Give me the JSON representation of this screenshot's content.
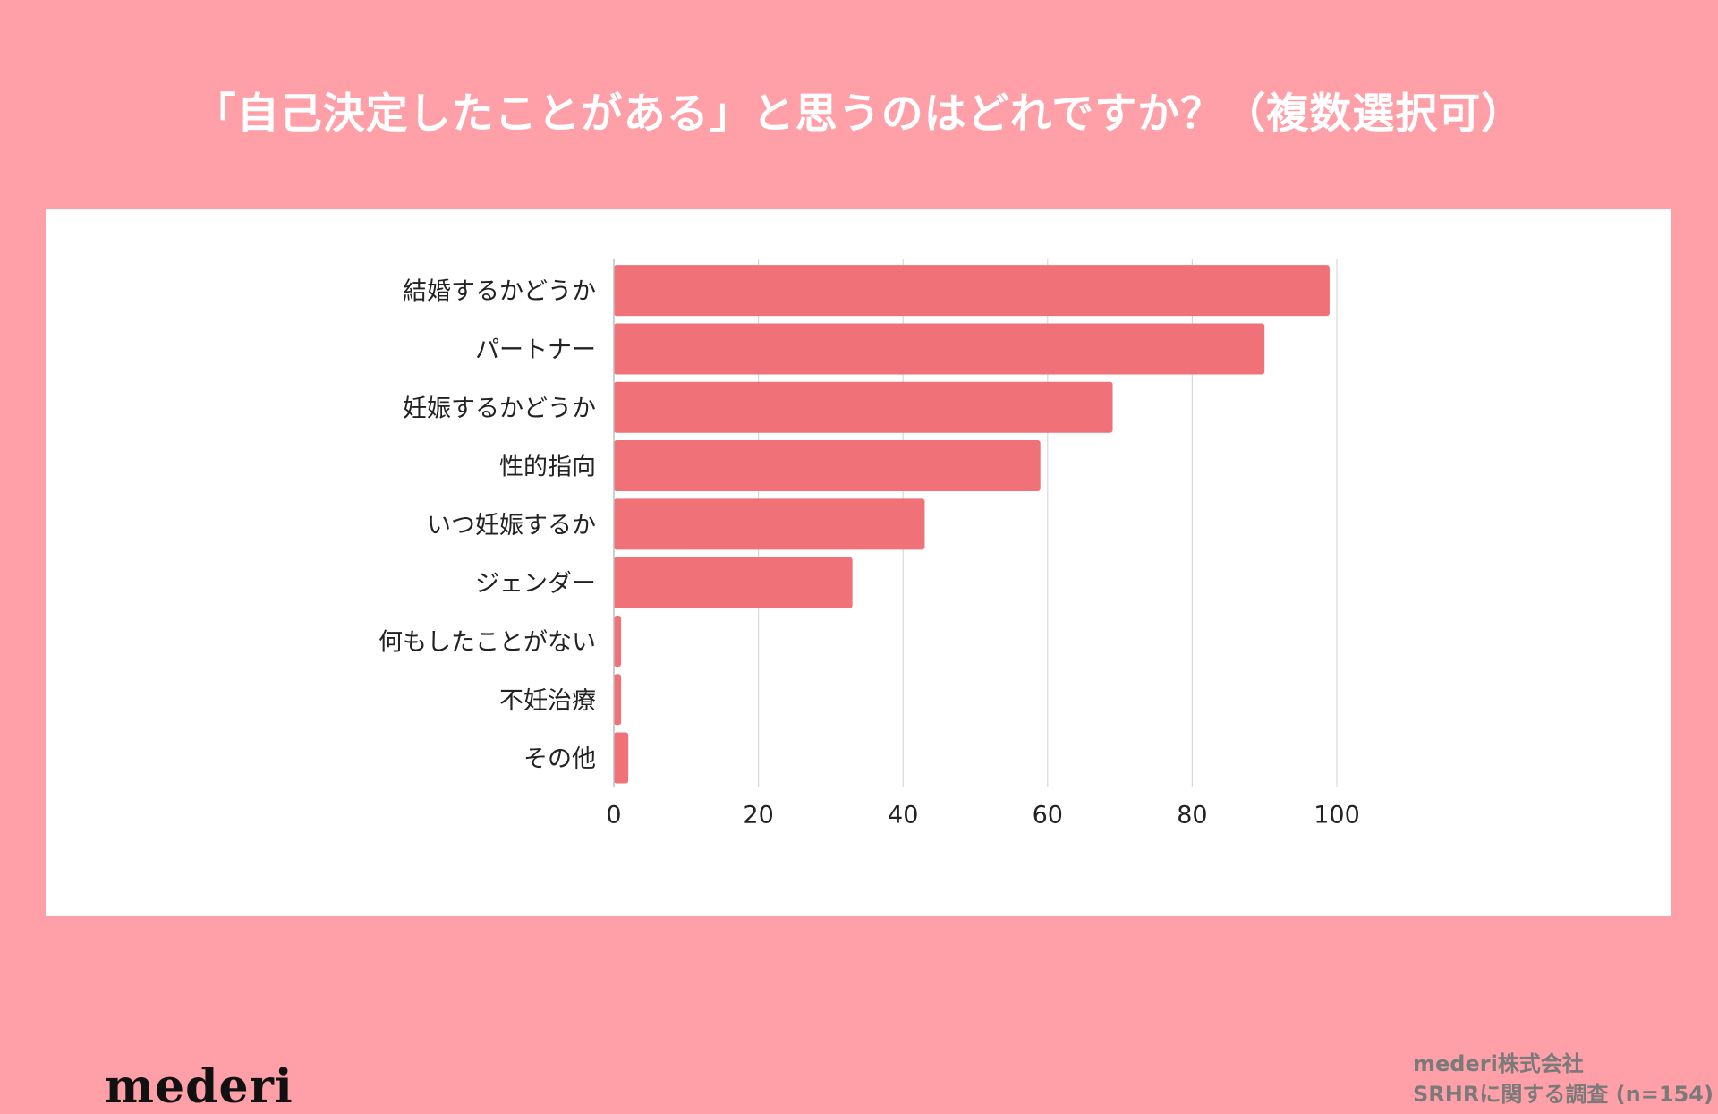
{
  "header": {
    "title": "「自己決定したことがある」と思うのはどれですか？（複数選択可）"
  },
  "branding": {
    "logo_text": "mederi",
    "credit_line1": "mederi株式会社",
    "credit_line2": "SRHRに関する調査 (n=154)"
  },
  "colors": {
    "page_background": "#ffa0a8",
    "panel_background": "#ffffff",
    "bar": "#f07178",
    "grid": "#d8d8d8",
    "title_text": "#ffffff"
  },
  "chart_data": {
    "type": "bar",
    "orientation": "horizontal",
    "categories": [
      "結婚するかどうか",
      "パートナー",
      "妊娠するかどうか",
      "性的指向",
      "いつ妊娠するか",
      "ジェンダー",
      "何もしたことがない",
      "不妊治療",
      "その他"
    ],
    "values": [
      99,
      90,
      69,
      59,
      43,
      33,
      1,
      1,
      2
    ],
    "xlim": [
      0,
      100
    ],
    "xticks": [
      0,
      20,
      40,
      60,
      80,
      100
    ],
    "grid": true,
    "legend": "none",
    "title": "",
    "xlabel": "",
    "ylabel": ""
  }
}
